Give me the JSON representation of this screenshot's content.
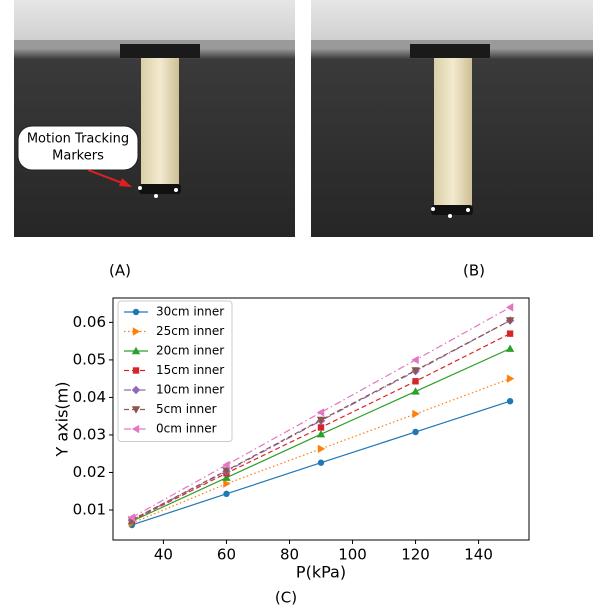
{
  "figure": {
    "panel_labels": [
      "(A)",
      "(B)",
      "(C)"
    ],
    "annotation_lines": [
      "Motion Tracking",
      "Markers"
    ]
  },
  "chart_data": {
    "type": "line",
    "xlabel": "P(kPa)",
    "ylabel": "Y axis(m)",
    "x": [
      30,
      60,
      90,
      120,
      150
    ],
    "xlim": [
      24,
      156
    ],
    "ylim": [
      0.002,
      0.0665
    ],
    "xticks": [
      40,
      60,
      80,
      100,
      120,
      140
    ],
    "yticks": [
      0.01,
      0.02,
      0.03,
      0.04,
      0.05,
      0.06
    ],
    "legend": "upper left",
    "series": [
      {
        "name": "30cm inner",
        "color": "#1f77b4",
        "marker": "circle",
        "dash": "solid",
        "values": [
          0.006,
          0.0143,
          0.0226,
          0.0308,
          0.039
        ]
      },
      {
        "name": "25cm inner",
        "color": "#ff7f0e",
        "marker": "triangle-right",
        "dash": "dotted",
        "values": [
          0.0065,
          0.017,
          0.0263,
          0.0356,
          0.045
        ]
      },
      {
        "name": "20cm inner",
        "color": "#2ca02c",
        "marker": "triangle-up",
        "dash": "solid",
        "values": [
          0.007,
          0.0186,
          0.0302,
          0.0416,
          0.053
        ]
      },
      {
        "name": "15cm inner",
        "color": "#d62728",
        "marker": "square",
        "dash": "dashed",
        "values": [
          0.0072,
          0.0198,
          0.032,
          0.0443,
          0.057
        ]
      },
      {
        "name": "10cm inner",
        "color": "#9467bd",
        "marker": "diamond",
        "dash": "dashdot",
        "values": [
          0.0073,
          0.0203,
          0.0338,
          0.047,
          0.0605
        ]
      },
      {
        "name": "5cm inner",
        "color": "#8c564b",
        "marker": "triangle-down",
        "dash": "dashed",
        "values": [
          0.0074,
          0.0205,
          0.034,
          0.0472,
          0.0605
        ]
      },
      {
        "name": "0cm inner",
        "color": "#e377c2",
        "marker": "triangle-left",
        "dash": "dashdot",
        "values": [
          0.008,
          0.022,
          0.036,
          0.05,
          0.064
        ]
      }
    ]
  }
}
